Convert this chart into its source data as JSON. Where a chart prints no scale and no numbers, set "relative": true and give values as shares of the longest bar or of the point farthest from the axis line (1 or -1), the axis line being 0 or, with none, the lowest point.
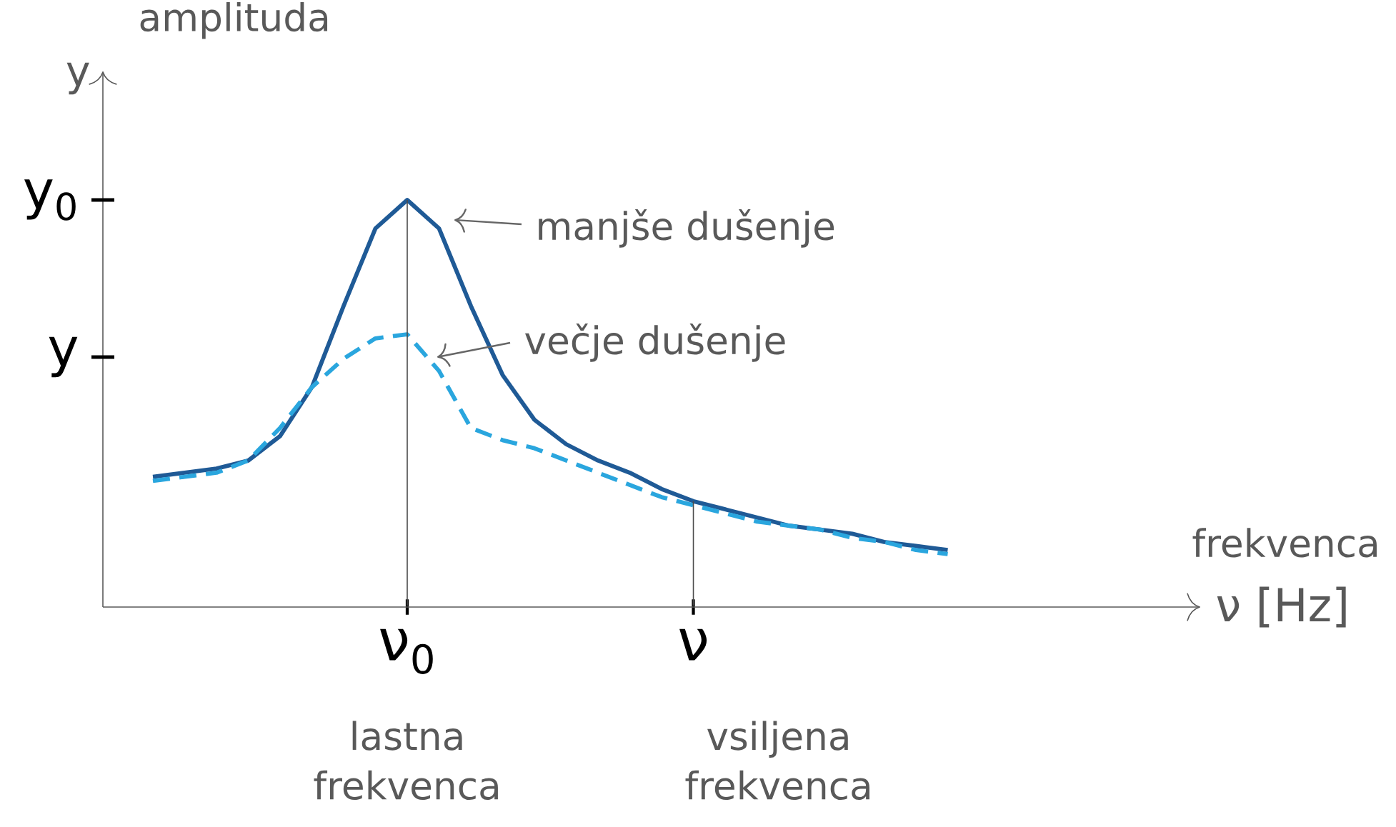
{
  "chart_data": {
    "type": "line",
    "relative": true,
    "ylabel": "y",
    "categories": [
      null,
      null,
      null,
      null,
      null,
      null,
      null,
      null,
      "ν$_{0}$",
      null,
      null,
      null,
      null,
      null,
      null,
      null,
      null,
      "ν",
      null,
      null,
      null,
      null,
      null,
      null,
      null,
      null
    ],
    "series": [
      {
        "color": "#1f5a96",
        "line_style": "solid",
        "values": [
          0.32,
          0.33,
          0.34,
          0.36,
          0.42,
          0.54,
          0.74,
          0.93,
          1.0,
          0.93,
          0.74,
          0.57,
          0.46,
          0.4,
          0.36,
          0.33,
          0.29,
          0.26,
          0.24,
          0.22,
          0.2,
          0.19,
          0.18,
          0.16,
          0.15,
          0.14
        ]
      },
      {
        "color": "#2aa6de",
        "line_style": "dashed",
        "values": [
          0.31,
          0.32,
          0.33,
          0.36,
          0.44,
          0.54,
          0.61,
          0.66,
          0.67,
          0.58,
          0.44,
          0.41,
          0.39,
          0.36,
          0.33,
          0.3,
          0.27,
          0.25,
          0.23,
          0.21,
          0.2,
          0.19,
          0.17,
          0.16,
          0.14,
          0.13
        ]
      }
    ],
    "ref_lines": [
      {
        "axis": "x",
        "value": "ν$_{0}$"
      },
      {
        "axis": "x",
        "value": "ν"
      }
    ],
    "annotations": [
      "y$_{0}$",
      "y",
      "manjše dušenje",
      "večje dušenje",
      "lastna frekvenca",
      "vsiljena frekvenca",
      "amplituda",
      "frekvenca",
      "ν [Hz]"
    ]
  }
}
